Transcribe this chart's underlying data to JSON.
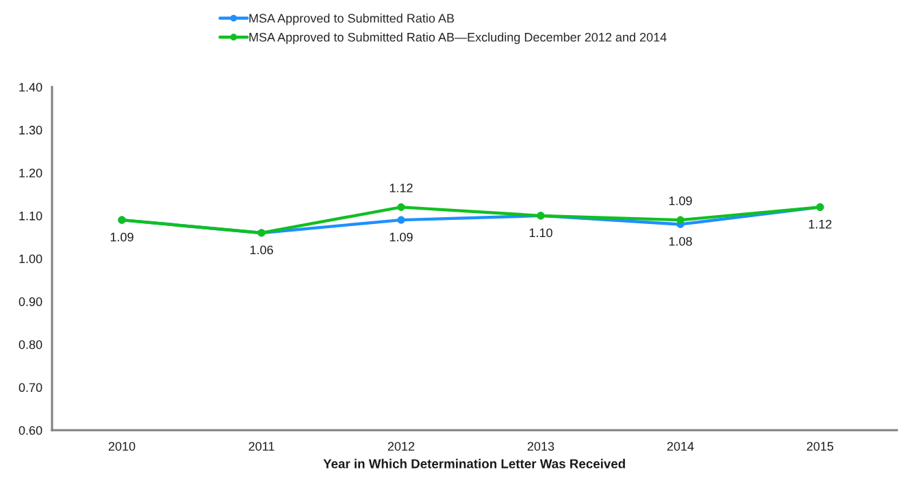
{
  "chart_data": {
    "type": "line",
    "xlabel": "Year in Which Determination Letter Was Received",
    "categories": [
      "2010",
      "2011",
      "2012",
      "2013",
      "2014",
      "2015"
    ],
    "series": [
      {
        "name": "MSA Approved to Submitted Ratio AB",
        "color": "#1f8fff",
        "values": [
          1.09,
          1.06,
          1.09,
          1.1,
          1.08,
          1.12
        ],
        "value_labels": [
          "1.09",
          "1.06",
          "1.09",
          "1.10",
          "1.08",
          "1.12"
        ]
      },
      {
        "name": "MSA Approved to Submitted Ratio AB—Excluding December 2012 and 2014",
        "color": "#10c020",
        "values": [
          1.09,
          1.06,
          1.12,
          1.1,
          1.09,
          1.12
        ],
        "value_labels": [
          null,
          null,
          "1.12",
          null,
          "1.09",
          null
        ]
      }
    ],
    "ylim": [
      0.6,
      1.4
    ],
    "yticks": [
      {
        "value": 0.6,
        "label": "0.60"
      },
      {
        "value": 0.7,
        "label": "0.70"
      },
      {
        "value": 0.8,
        "label": "0.80"
      },
      {
        "value": 0.9,
        "label": "0.90"
      },
      {
        "value": 1.0,
        "label": "1.00"
      },
      {
        "value": 1.1,
        "label": "1.10"
      },
      {
        "value": 1.2,
        "label": "1.20"
      },
      {
        "value": 1.3,
        "label": "1.30"
      },
      {
        "value": 1.4,
        "label": "1.40"
      }
    ],
    "grid": false,
    "legend": "top",
    "marker": "circle",
    "line_style": "solid"
  }
}
